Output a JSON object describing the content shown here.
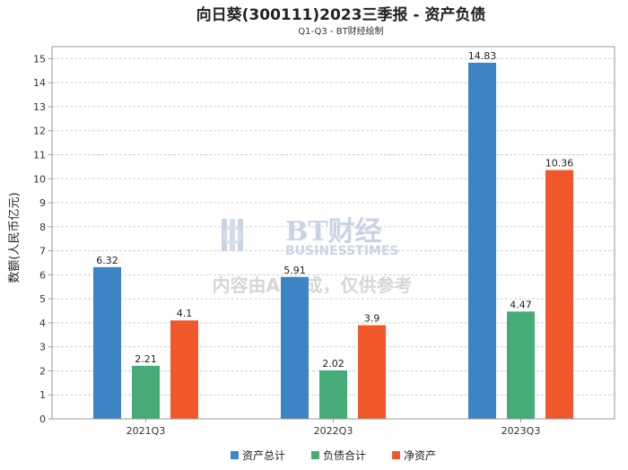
{
  "chart_data": {
    "type": "bar",
    "title": "向日葵(300111)2023三季报 - 资产负债",
    "subtitle": "Q1-Q3 - BT财经绘制",
    "ylabel": "数额(人民币亿元)",
    "xlabel": "",
    "categories": [
      "2021Q3",
      "2022Q3",
      "2023Q3"
    ],
    "ylim": [
      0,
      15.5
    ],
    "yticks": [
      0,
      1,
      2,
      3,
      4,
      5,
      6,
      7,
      8,
      9,
      10,
      11,
      12,
      13,
      14,
      15
    ],
    "grid": true,
    "legend_position": "bottom",
    "series": [
      {
        "name": "资产总计",
        "color": "#3c84c3",
        "values": [
          6.32,
          5.91,
          14.83
        ],
        "labels": [
          "6.32",
          "5.91",
          "14.83"
        ]
      },
      {
        "name": "负债合计",
        "color": "#46ab77",
        "values": [
          2.21,
          2.02,
          4.47
        ],
        "labels": [
          "2.21",
          "2.02",
          "4.47"
        ]
      },
      {
        "name": "净资产",
        "color": "#f0582c",
        "values": [
          4.1,
          3.9,
          10.36
        ],
        "labels": [
          "4.1",
          "3.9",
          "10.36"
        ]
      }
    ]
  },
  "watermark": {
    "logo_text": "BT财经",
    "logo_subtext": "BUSINESSTIMES",
    "notice": "内容由AI生成，仅供参考"
  }
}
